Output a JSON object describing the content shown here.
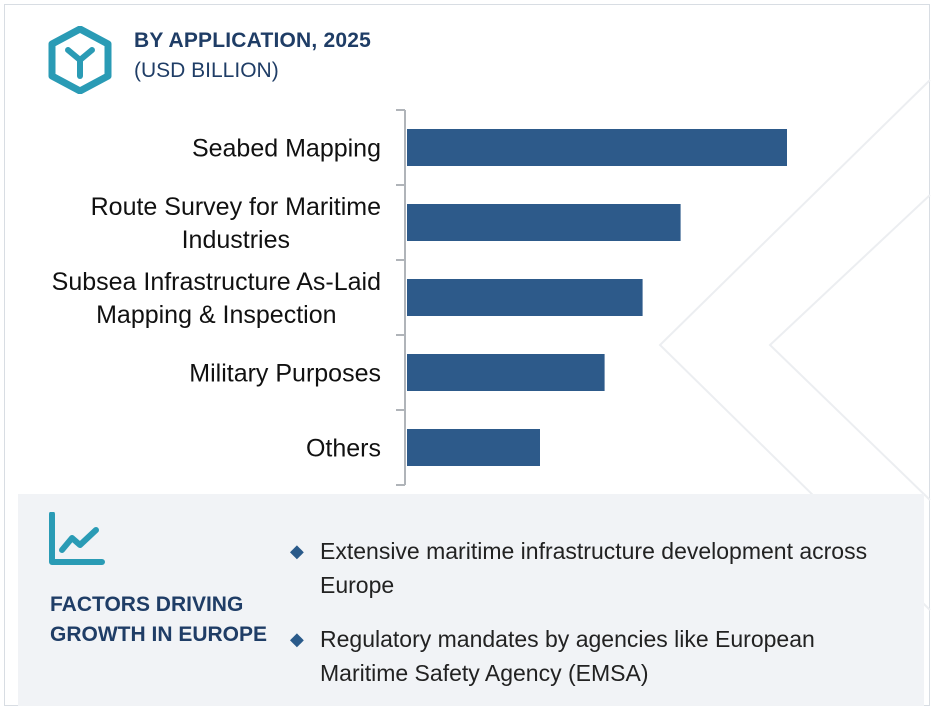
{
  "header": {
    "title": "BY APPLICATION, 2025",
    "subtitle": "(USD BILLION)",
    "icon": "cube-logo-icon"
  },
  "colors": {
    "bar": "#2d5a8a",
    "heading": "#1f3d66",
    "accent": "#2a9bb5",
    "panel": "#f1f3f6"
  },
  "chart_data": {
    "type": "bar",
    "orientation": "horizontal",
    "categories": [
      [
        "Seabed Mapping"
      ],
      [
        "Route Survey for Maritime",
        "Industries"
      ],
      [
        "Subsea Infrastructure As-Laid",
        "Mapping & Inspection"
      ],
      [
        "Military Purposes"
      ],
      [
        "Others"
      ]
    ],
    "values": [
      1.0,
      0.72,
      0.62,
      0.52,
      0.35
    ],
    "value_axis": "no numeric scale printed; values are relative bar lengths (largest = 1.0)",
    "grid": false,
    "legend": "none"
  },
  "factors": {
    "icon": "trend-chart-icon",
    "title": "FACTORS DRIVING GROWTH IN EUROPE",
    "items": [
      "Extensive maritime infrastructure development across Europe",
      "Regulatory mandates by agencies like European Maritime Safety Agency (EMSA)"
    ]
  }
}
